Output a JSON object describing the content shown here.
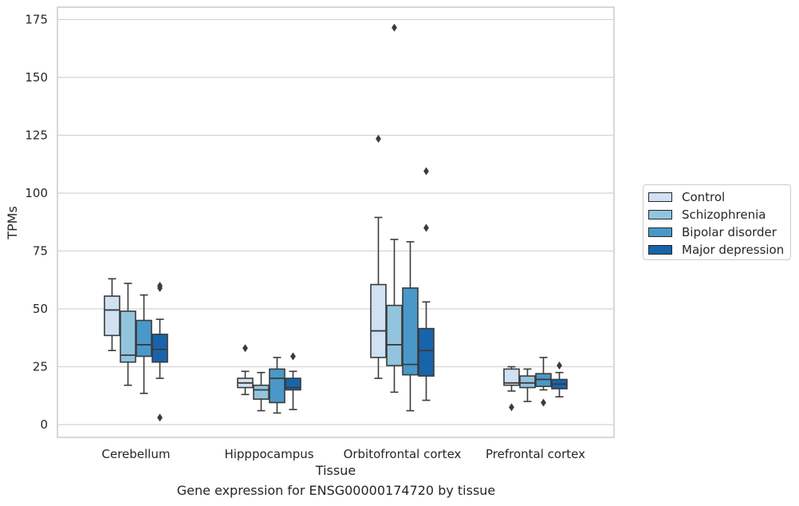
{
  "chart_data": {
    "type": "box",
    "title": "",
    "caption": "Gene expression for ENSG00000174720 by tissue",
    "xlabel": "Tissue",
    "ylabel": "TPMs",
    "ylim": [
      -5,
      180
    ],
    "yticks": [
      0,
      25,
      50,
      75,
      100,
      125,
      150,
      175
    ],
    "grid": true,
    "legend_position": "right",
    "categories": [
      "Cerebellum",
      "Hipppocampus",
      "Orbitofrontal cortex",
      "Prefrontal cortex"
    ],
    "series": [
      {
        "name": "Control",
        "color": "#cfe1f2",
        "boxes": [
          {
            "whislo": 32,
            "q1": 38.5,
            "med": 49.5,
            "q3": 55.5,
            "whishi": 63,
            "fliers": []
          },
          {
            "whislo": 13,
            "q1": 16,
            "med": 18,
            "q3": 20,
            "whishi": 23,
            "fliers": [
              33
            ]
          },
          {
            "whislo": 20,
            "q1": 29,
            "med": 40.5,
            "q3": 60.5,
            "whishi": 89.5,
            "fliers": [
              123.5
            ]
          },
          {
            "whislo": 14.5,
            "q1": 17,
            "med": 18,
            "q3": 24,
            "whishi": 25,
            "fliers": [
              7.5
            ]
          }
        ]
      },
      {
        "name": "Schizophrenia",
        "color": "#93c4de",
        "boxes": [
          {
            "whislo": 17,
            "q1": 27,
            "med": 30,
            "q3": 49,
            "whishi": 61,
            "fliers": []
          },
          {
            "whislo": 6,
            "q1": 11,
            "med": 15,
            "q3": 17,
            "whishi": 22.5,
            "fliers": []
          },
          {
            "whislo": 14,
            "q1": 25.5,
            "med": 34.5,
            "q3": 51.5,
            "whishi": 80,
            "fliers": [
              171.5
            ]
          },
          {
            "whislo": 10,
            "q1": 16,
            "med": 18,
            "q3": 21,
            "whishi": 24,
            "fliers": []
          }
        ]
      },
      {
        "name": "Bipolar disorder",
        "color": "#4a98c9",
        "boxes": [
          {
            "whislo": 13.5,
            "q1": 29.5,
            "med": 34.5,
            "q3": 45,
            "whishi": 56,
            "fliers": []
          },
          {
            "whislo": 5,
            "q1": 9.5,
            "med": 20,
            "q3": 24,
            "whishi": 29,
            "fliers": []
          },
          {
            "whislo": 6,
            "q1": 21.5,
            "med": 26,
            "q3": 59,
            "whishi": 79,
            "fliers": []
          },
          {
            "whislo": 15,
            "q1": 16.5,
            "med": 19.5,
            "q3": 22,
            "whishi": 29,
            "fliers": [
              9.5
            ]
          }
        ]
      },
      {
        "name": "Major depression",
        "color": "#1864aa",
        "boxes": [
          {
            "whislo": 20,
            "q1": 27,
            "med": 32.5,
            "q3": 39,
            "whishi": 45.5,
            "fliers": [
              60,
              59,
              3
            ]
          },
          {
            "whislo": 6.5,
            "q1": 15,
            "med": 16,
            "q3": 20,
            "whishi": 23,
            "fliers": [
              29.5
            ]
          },
          {
            "whislo": 10.5,
            "q1": 21,
            "med": 32,
            "q3": 41.5,
            "whishi": 53,
            "fliers": [
              109.5,
              85
            ]
          },
          {
            "whislo": 12,
            "q1": 15.5,
            "med": 17.5,
            "q3": 19.5,
            "whishi": 22.5,
            "fliers": [
              25.5
            ]
          }
        ]
      }
    ]
  }
}
